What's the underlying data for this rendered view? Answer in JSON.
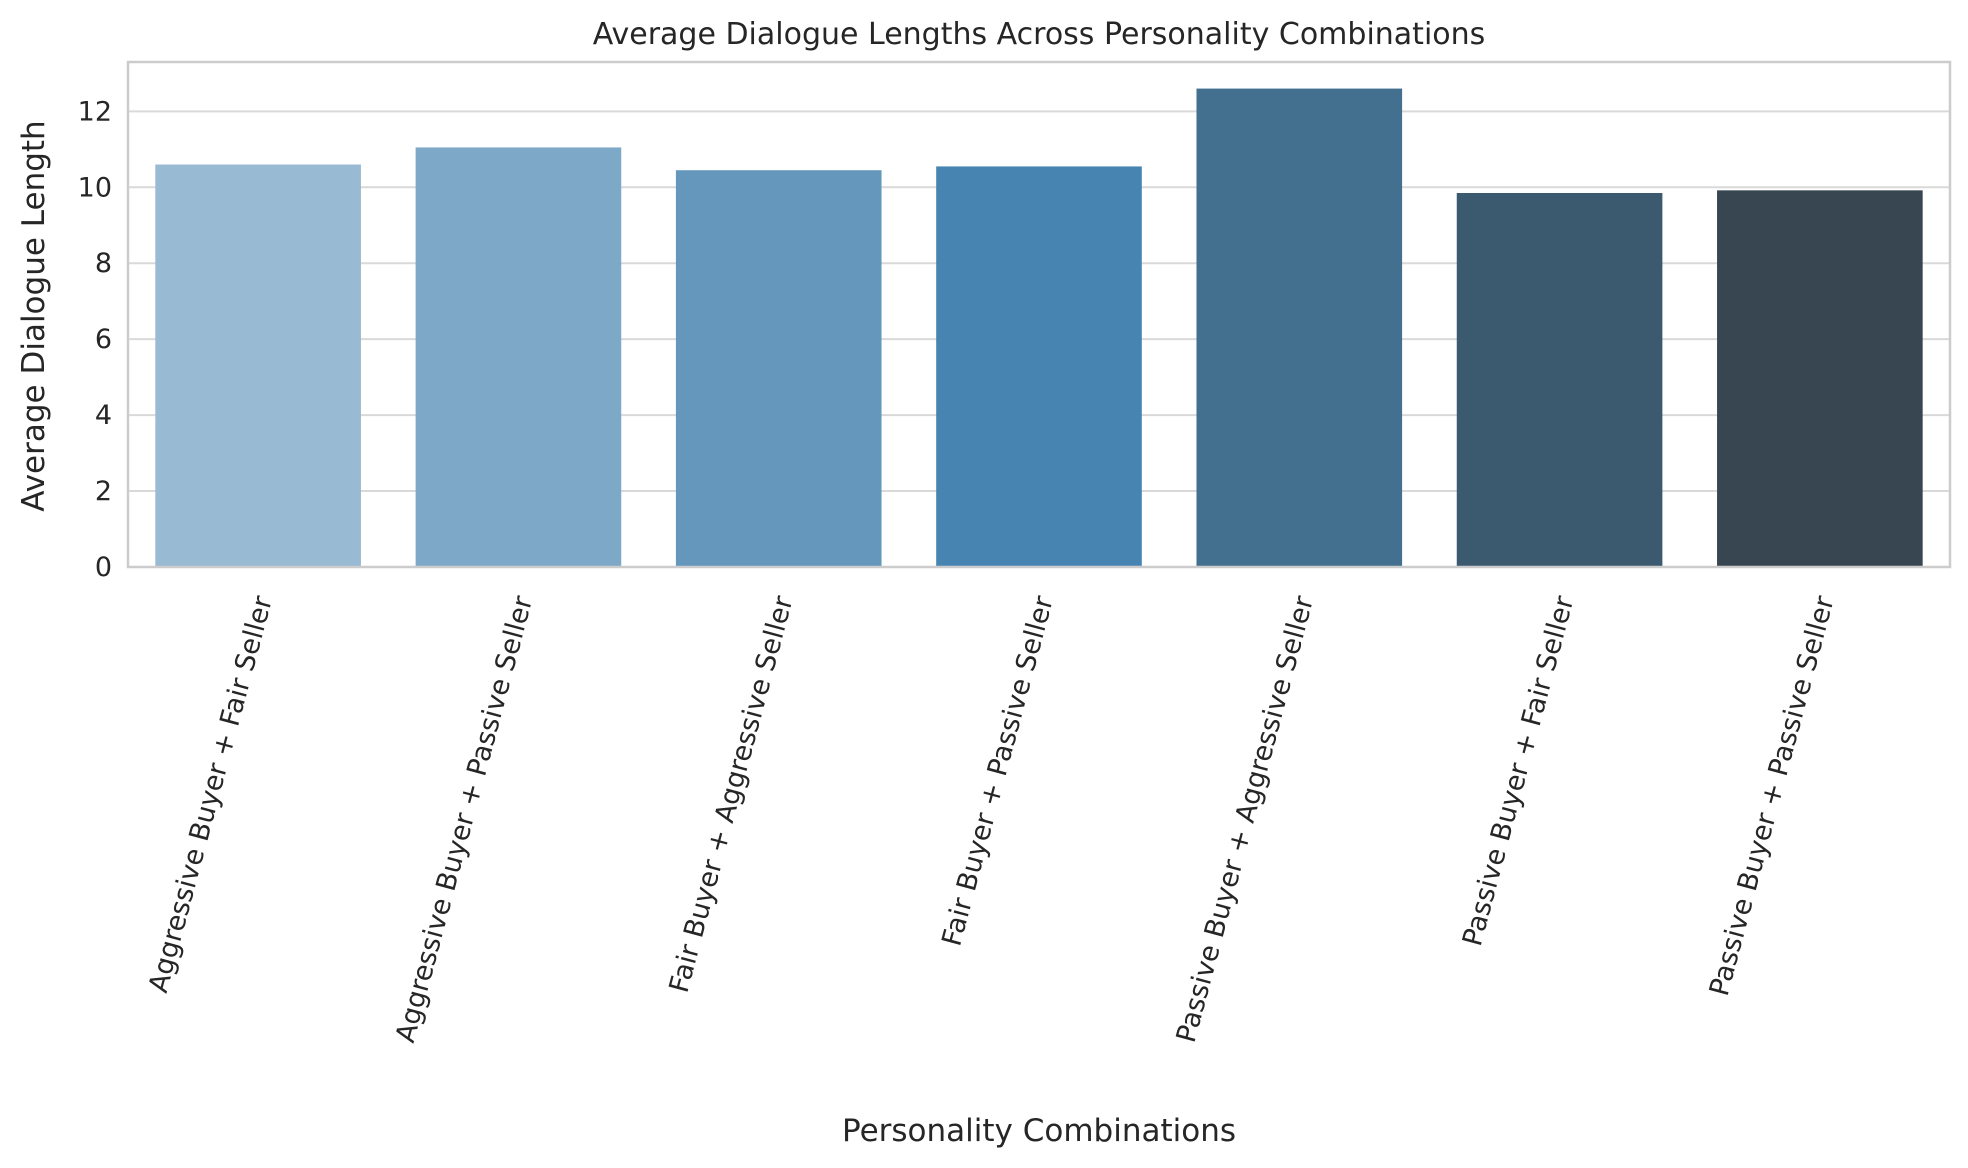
{
  "chart_data": {
    "type": "bar",
    "title": "Average Dialogue Lengths Across Personality Combinations",
    "xlabel": "Personality Combinations",
    "ylabel": "Average Dialogue Length",
    "categories": [
      "Aggressive Buyer + Fair Seller",
      "Aggressive Buyer + Passive Seller",
      "Fair Buyer + Aggressive Seller",
      "Fair Buyer + Passive Seller",
      "Passive Buyer + Aggressive Seller",
      "Passive Buyer + Fair Seller",
      "Passive Buyer + Passive Seller"
    ],
    "values": [
      10.6,
      11.05,
      10.45,
      10.55,
      12.6,
      9.85,
      9.92
    ],
    "colors": [
      "#99bad3",
      "#7ea8c7",
      "#6497bb",
      "#4884b1",
      "#44708f",
      "#3c5a6f",
      "#384652"
    ],
    "ylim": [
      0,
      13.3
    ],
    "yticks": [
      0,
      2,
      4,
      6,
      8,
      10,
      12
    ],
    "grid": true
  }
}
